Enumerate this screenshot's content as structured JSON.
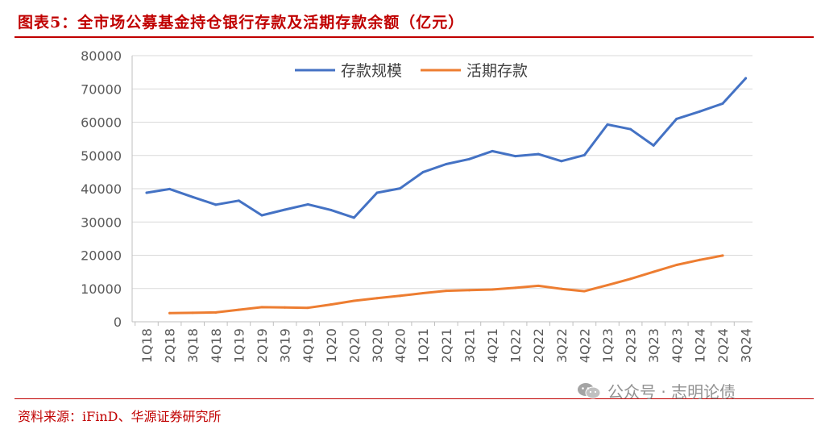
{
  "title": "图表5：全市场公募基金持仓银行存款及活期存款余额（亿元）",
  "source": "资料来源：iFinD、华源证券研究所",
  "watermark": "公众号 · 志明论债",
  "colors": {
    "brand_red": "#c00000",
    "series1": "#4472c4",
    "series2": "#ed7d31",
    "grid": "#d9d9d9"
  },
  "chart_data": {
    "type": "line",
    "title": "",
    "xlabel": "",
    "ylabel": "",
    "ylim": [
      0,
      80000
    ],
    "yticks": [
      0,
      10000,
      20000,
      30000,
      40000,
      50000,
      60000,
      70000,
      80000
    ],
    "grid": true,
    "legend_position": "top-center",
    "categories": [
      "1Q18",
      "2Q18",
      "3Q18",
      "4Q18",
      "1Q19",
      "2Q19",
      "3Q19",
      "4Q19",
      "1Q20",
      "2Q20",
      "3Q20",
      "4Q20",
      "1Q21",
      "2Q21",
      "3Q21",
      "4Q21",
      "1Q22",
      "2Q22",
      "3Q22",
      "4Q22",
      "1Q23",
      "2Q23",
      "3Q23",
      "4Q23",
      "1Q24",
      "2Q24",
      "3Q24"
    ],
    "series": [
      {
        "name": "存款规模",
        "color": "#4472c4",
        "values": [
          38800,
          39900,
          37500,
          35200,
          36400,
          32000,
          33700,
          35300,
          33600,
          31300,
          38800,
          40100,
          45000,
          47400,
          48900,
          51300,
          49800,
          50400,
          48300,
          50100,
          59300,
          57900,
          53000,
          61000,
          63200,
          65600,
          73200
        ]
      },
      {
        "name": "活期存款",
        "color": "#ed7d31",
        "values": [
          null,
          2600,
          2700,
          2800,
          3600,
          4400,
          4300,
          4200,
          5200,
          6300,
          7100,
          7800,
          8600,
          9300,
          9500,
          9700,
          10200,
          10800,
          9900,
          9200,
          11000,
          12900,
          15000,
          17100,
          18600,
          19900,
          null
        ]
      }
    ]
  }
}
